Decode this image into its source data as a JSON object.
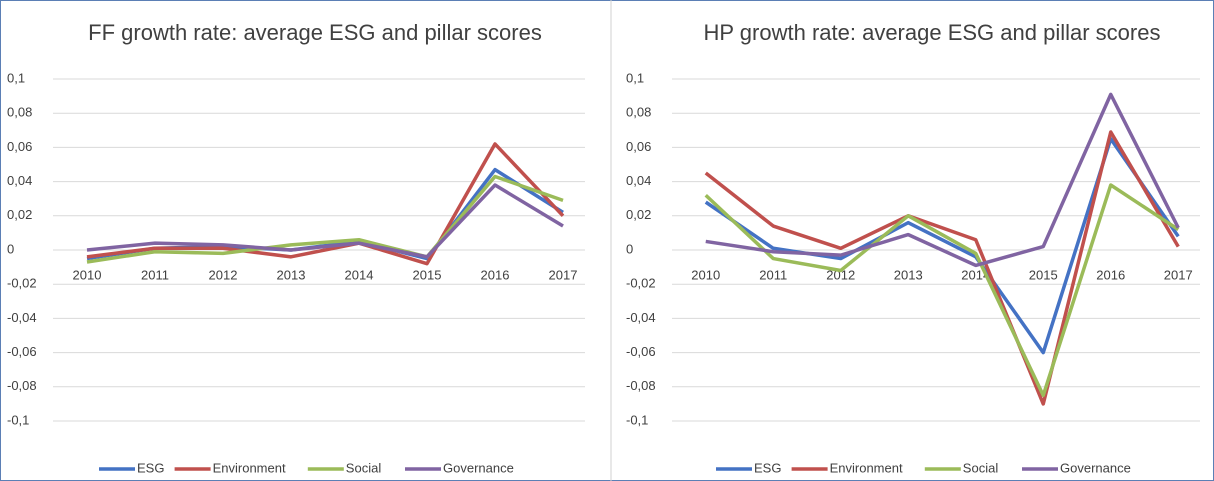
{
  "chart_data": [
    {
      "type": "line",
      "title": "FF growth rate: average ESG and pillar scores",
      "categories": [
        "2010",
        "2011",
        "2012",
        "2013",
        "2014",
        "2015",
        "2016",
        "2017"
      ],
      "series": [
        {
          "name": "ESG",
          "color": "#4472c4",
          "values": [
            -0.005,
            0.001,
            0.002,
            0,
            0.005,
            -0.005,
            0.047,
            0.022
          ]
        },
        {
          "name": "Environment",
          "color": "#c0504d",
          "values": [
            -0.004,
            0.001,
            0.001,
            -0.004,
            0.004,
            -0.008,
            0.062,
            0.02
          ]
        },
        {
          "name": "Social",
          "color": "#9bbb59",
          "values": [
            -0.007,
            -0.001,
            -0.002,
            0.003,
            0.006,
            -0.004,
            0.043,
            0.029
          ]
        },
        {
          "name": "Governance",
          "color": "#8064a2",
          "values": [
            0,
            0.004,
            0.003,
            0,
            0.004,
            -0.004,
            0.038,
            0.014
          ]
        }
      ],
      "ylim": [
        -0.1,
        0.1
      ],
      "yticks": [
        {
          "value": 0.1,
          "label": "0,1"
        },
        {
          "value": 0.08,
          "label": "0,08"
        },
        {
          "value": 0.06,
          "label": "0,06"
        },
        {
          "value": 0.04,
          "label": "0,04"
        },
        {
          "value": 0.02,
          "label": "0,02"
        },
        0,
        {
          "value": -0.02,
          "label": "-0,02"
        },
        {
          "value": -0.04,
          "label": "-0,04"
        },
        {
          "value": -0.06,
          "label": "-0,06"
        },
        {
          "value": -0.08,
          "label": "-0,08"
        },
        {
          "value": -0.1,
          "label": "-0,1"
        }
      ],
      "grid": true,
      "legend": "bottom"
    },
    {
      "type": "line",
      "title": "HP growth rate: average ESG and pillar scores",
      "categories": [
        "2010",
        "2011",
        "2012",
        "2013",
        "2014",
        "2015",
        "2016",
        "2017"
      ],
      "series": [
        {
          "name": "ESG",
          "color": "#4472c4",
          "values": [
            0.028,
            0.001,
            -0.005,
            0.016,
            -0.004,
            -0.06,
            0.065,
            0.008
          ]
        },
        {
          "name": "Environment",
          "color": "#c0504d",
          "values": [
            0.045,
            0.014,
            0.001,
            0.02,
            0.006,
            -0.09,
            0.069,
            0.002
          ]
        },
        {
          "name": "Social",
          "color": "#9bbb59",
          "values": [
            0.032,
            -0.005,
            -0.012,
            0.02,
            -0.002,
            -0.085,
            0.038,
            0.012
          ]
        },
        {
          "name": "Governance",
          "color": "#8064a2",
          "values": [
            0.005,
            -0.001,
            -0.003,
            0.009,
            -0.009,
            0.002,
            0.091,
            0.013
          ]
        }
      ],
      "ylim": [
        -0.1,
        0.1
      ],
      "yticks": [
        {
          "value": 0.1,
          "label": "0,1"
        },
        {
          "value": 0.08,
          "label": "0,08"
        },
        {
          "value": 0.06,
          "label": "0,06"
        },
        {
          "value": 0.04,
          "label": "0,04"
        },
        {
          "value": 0.02,
          "label": "0,02"
        },
        0,
        {
          "value": -0.02,
          "label": "-0,02"
        },
        {
          "value": -0.04,
          "label": "-0,04"
        },
        {
          "value": -0.06,
          "label": "-0,06"
        },
        {
          "value": -0.08,
          "label": "-0,08"
        },
        {
          "value": -0.1,
          "label": "-0,1"
        }
      ],
      "grid": true,
      "legend": "bottom"
    }
  ]
}
